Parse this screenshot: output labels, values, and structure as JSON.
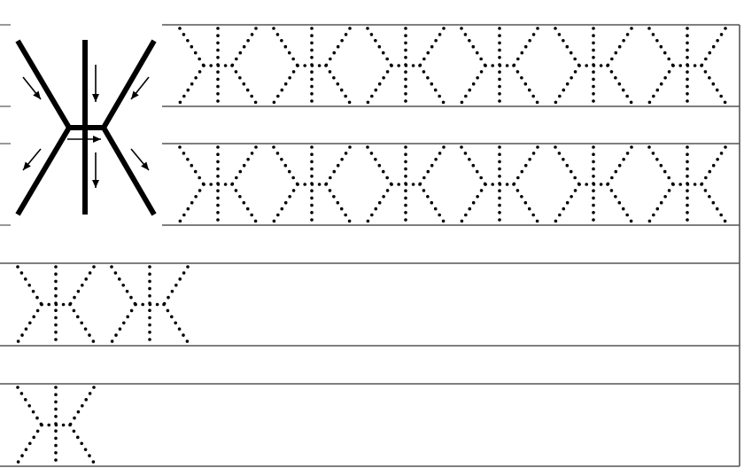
{
  "worksheet": {
    "letter": "Ж",
    "practice_rows": [
      {
        "row": 1,
        "letter_count": 6
      },
      {
        "row": 2,
        "letter_count": 6
      },
      {
        "row": 3,
        "letter_count": 2
      },
      {
        "row": 4,
        "letter_count": 1
      }
    ],
    "model_letter": {
      "stroke_direction_arrows": [
        "arrow-down-right",
        "arrow-down",
        "arrow-down-left",
        "arrow-right",
        "arrow-down-left",
        "arrow-down",
        "arrow-down-right"
      ]
    },
    "colors": {
      "ink": "#000000",
      "rule": "#555555",
      "paper": "#ffffff"
    }
  }
}
